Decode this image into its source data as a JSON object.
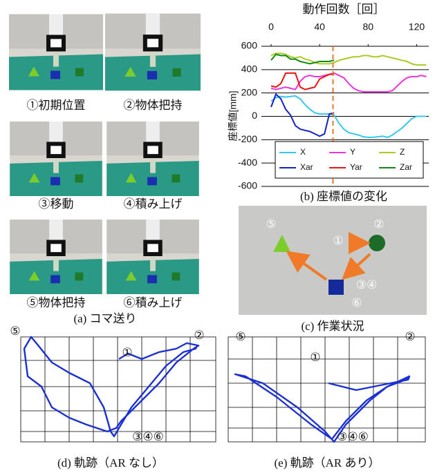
{
  "panel_a": {
    "frames": [
      "①初期位置",
      "②物体把持",
      "③移動",
      "④積み上げ",
      "⑤物体把持",
      "⑥積み上げ"
    ],
    "caption": "(a) コマ送り"
  },
  "chart_data": {
    "type": "line",
    "x_label": "動作回数［回］",
    "y_label": "座標値[mm]",
    "caption": "(b) 座標値の変化",
    "x_axis": "top",
    "grid": true,
    "legend": "lower",
    "xlim": [
      -8,
      130
    ],
    "xticks": [
      0,
      40,
      80,
      120
    ],
    "ylim": [
      -600,
      600
    ],
    "yticks": [
      -600,
      -400,
      -200,
      0,
      200,
      400,
      600
    ],
    "x": [
      0,
      4,
      8,
      12,
      16,
      20,
      24,
      28,
      32,
      36,
      40,
      44,
      48,
      52,
      56,
      60,
      64,
      68,
      72,
      76,
      80,
      84,
      88,
      92,
      96,
      100,
      104,
      108,
      112,
      116,
      120,
      124,
      128
    ],
    "series": [
      {
        "name": "X",
        "color": "#33c8ee",
        "values": [
          130,
          160,
          170,
          165,
          170,
          175,
          150,
          100,
          60,
          30,
          20,
          20,
          20,
          10,
          -60,
          -110,
          -140,
          -150,
          -160,
          -175,
          -180,
          -180,
          -175,
          -170,
          -180,
          -160,
          -130,
          -100,
          -60,
          -20,
          0,
          0,
          0
        ]
      },
      {
        "name": "Y",
        "color": "#ee33dd",
        "values": [
          240,
          230,
          240,
          250,
          240,
          230,
          300,
          340,
          350,
          340,
          340,
          350,
          360,
          370,
          350,
          330,
          280,
          240,
          220,
          210,
          210,
          210,
          210,
          210,
          210,
          220,
          260,
          300,
          330,
          340,
          340,
          350,
          340
        ]
      },
      {
        "name": "Z",
        "color": "#a8cc22",
        "values": [
          520,
          540,
          540,
          530,
          510,
          500,
          510,
          490,
          480,
          460,
          450,
          450,
          450,
          460,
          480,
          490,
          500,
          510,
          510,
          520,
          520,
          510,
          510,
          520,
          510,
          500,
          490,
          480,
          470,
          450,
          440,
          440,
          440
        ]
      },
      {
        "name": "Xar",
        "color": "#1122cc",
        "values": [
          80,
          190,
          150,
          60,
          10,
          -80,
          -110,
          -120,
          -130,
          -150,
          -170,
          -150,
          20,
          30,
          null,
          null,
          null,
          null,
          null,
          null,
          null,
          null,
          null,
          null,
          null,
          null,
          null,
          null,
          null,
          null,
          null,
          null,
          null
        ]
      },
      {
        "name": "Yar",
        "color": "#ee1111",
        "values": [
          260,
          250,
          280,
          370,
          370,
          370,
          250,
          230,
          240,
          250,
          320,
          340,
          360,
          360,
          null,
          null,
          null,
          null,
          null,
          null,
          null,
          null,
          null,
          null,
          null,
          null,
          null,
          null,
          null,
          null,
          null,
          null,
          null
        ]
      },
      {
        "name": "Zar",
        "color": "#118811",
        "values": [
          480,
          530,
          520,
          520,
          490,
          490,
          470,
          460,
          450,
          460,
          470,
          470,
          470,
          480,
          null,
          null,
          null,
          null,
          null,
          null,
          null,
          null,
          null,
          null,
          null,
          null,
          null,
          null,
          null,
          null,
          null,
          null,
          null
        ]
      }
    ],
    "vline": {
      "x": 51,
      "color": "#ee7722"
    }
  },
  "panel_c": {
    "labels": [
      "⑤",
      "②",
      "①",
      "③④",
      "⑥"
    ],
    "caption": "(c) 作業状況"
  },
  "panel_d": {
    "labels": [
      "⑤",
      "②",
      "①",
      "③④⑥"
    ],
    "caption": "(d) 軌跡（AR なし）"
  },
  "panel_e": {
    "labels": [
      "⑤",
      "②",
      "①",
      "③④⑥"
    ],
    "caption": "(e) 軌跡（AR あり）"
  }
}
